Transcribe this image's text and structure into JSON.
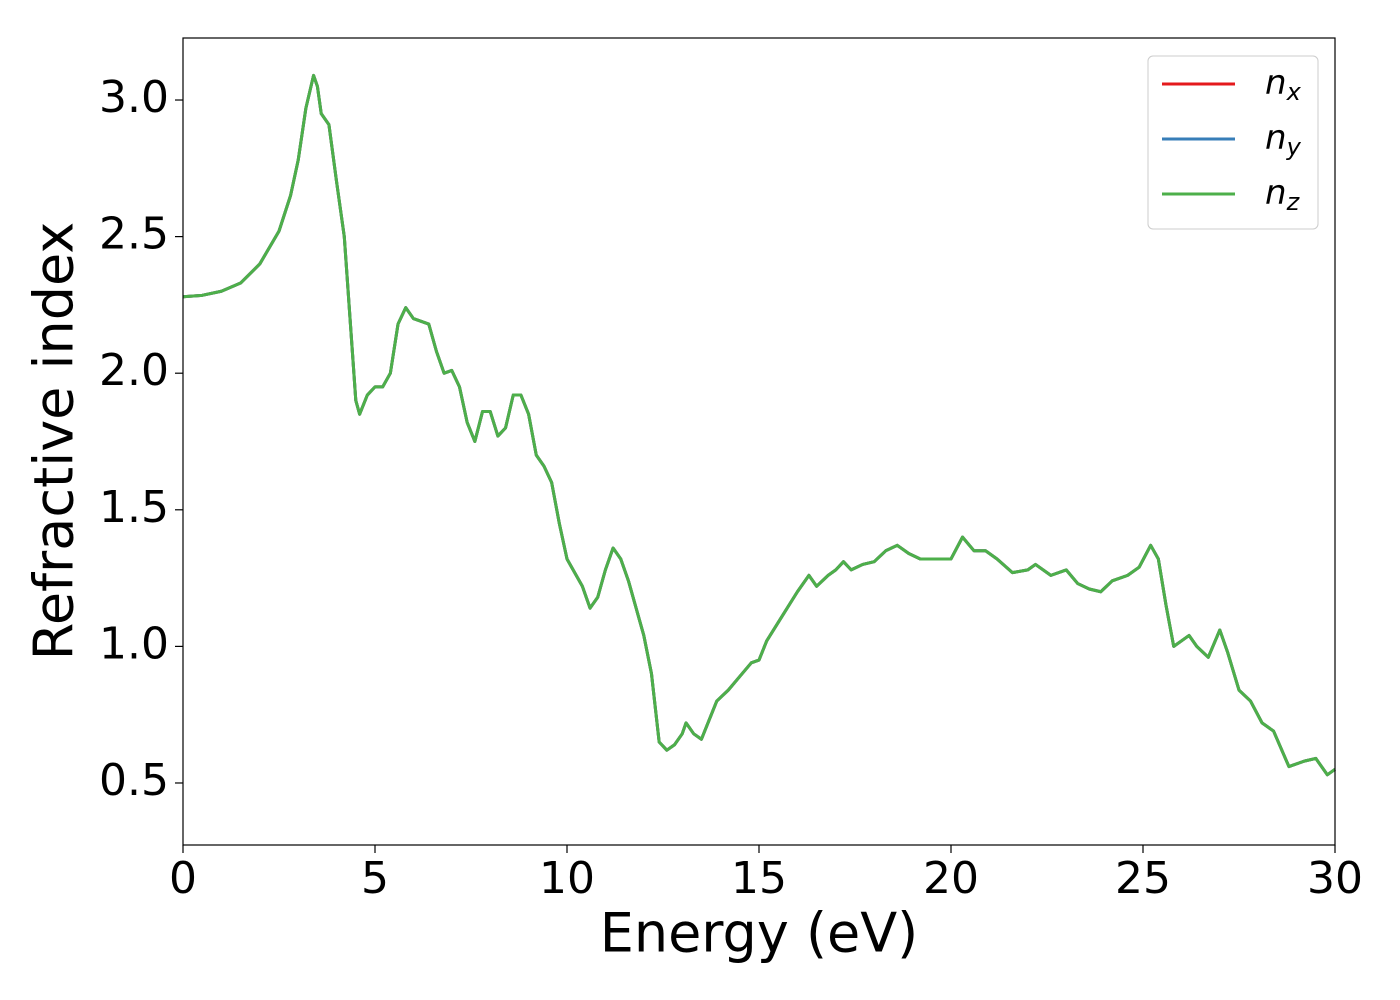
{
  "chart_data": {
    "type": "line",
    "xlabel": "Energy (eV)",
    "ylabel": "Refractive index",
    "xlim": [
      0,
      30
    ],
    "ylim": [
      0.273,
      3.227
    ],
    "xticks": [
      0,
      5,
      10,
      15,
      20,
      25,
      30
    ],
    "yticks": [
      0.5,
      {
        "value": 1,
        "label": "1.0"
      },
      1.5,
      {
        "value": 2,
        "label": "2.0"
      },
      2.5,
      {
        "value": 3,
        "label": "3.0"
      }
    ],
    "legend": "upper right",
    "x": [
      0,
      0.5,
      1,
      1.5,
      2,
      2.5,
      2.8,
      3,
      3.2,
      3.4,
      3.5,
      3.6,
      3.7,
      3.8,
      4,
      4.2,
      4.4,
      4.5,
      4.6,
      4.8,
      5,
      5.2,
      5.4,
      5.6,
      5.8,
      6,
      6.2,
      6.4,
      6.6,
      6.8,
      7,
      7.2,
      7.4,
      7.6,
      7.8,
      8,
      8.2,
      8.4,
      8.6,
      8.8,
      9,
      9.2,
      9.4,
      9.6,
      9.8,
      10,
      10.2,
      10.4,
      10.6,
      10.8,
      11,
      11.2,
      11.4,
      11.6,
      11.8,
      12,
      12.2,
      12.4,
      12.6,
      12.8,
      13,
      13.1,
      13.3,
      13.5,
      13.7,
      13.9,
      14.2,
      14.5,
      14.8,
      15,
      15.2,
      15.6,
      16,
      16.3,
      16.5,
      16.8,
      17,
      17.2,
      17.4,
      17.7,
      18,
      18.3,
      18.6,
      18.9,
      19.2,
      19.6,
      20,
      20.3,
      20.6,
      20.9,
      21.2,
      21.6,
      22,
      22.2,
      22.6,
      23,
      23.3,
      23.6,
      23.9,
      24.2,
      24.6,
      24.9,
      25.2,
      25.4,
      25.6,
      25.8,
      26,
      26.2,
      26.4,
      26.7,
      27,
      27.2,
      27.5,
      27.8,
      28.1,
      28.4,
      28.8,
      29.2,
      29.5,
      29.8,
      30
    ],
    "series": [
      {
        "name": "nx",
        "color": "#e41a1c",
        "values": [
          2.28,
          2.285,
          2.3,
          2.33,
          2.4,
          2.52,
          2.65,
          2.78,
          2.97,
          3.09,
          3.05,
          2.95,
          2.93,
          2.91,
          2.7,
          2.5,
          2.1,
          1.9,
          1.85,
          1.92,
          1.95,
          1.95,
          2,
          2.18,
          2.24,
          2.2,
          2.19,
          2.18,
          2.08,
          2,
          2.01,
          1.95,
          1.82,
          1.75,
          1.86,
          1.86,
          1.77,
          1.8,
          1.92,
          1.92,
          1.85,
          1.7,
          1.66,
          1.6,
          1.45,
          1.32,
          1.27,
          1.22,
          1.14,
          1.18,
          1.28,
          1.36,
          1.32,
          1.24,
          1.14,
          1.04,
          0.9,
          0.65,
          0.62,
          0.64,
          0.68,
          0.72,
          0.68,
          0.66,
          0.73,
          0.8,
          0.84,
          0.89,
          0.94,
          0.95,
          1.02,
          1.11,
          1.2,
          1.26,
          1.22,
          1.26,
          1.28,
          1.31,
          1.28,
          1.3,
          1.31,
          1.35,
          1.37,
          1.34,
          1.32,
          1.32,
          1.32,
          1.4,
          1.35,
          1.35,
          1.32,
          1.27,
          1.28,
          1.3,
          1.26,
          1.28,
          1.23,
          1.21,
          1.2,
          1.24,
          1.26,
          1.29,
          1.37,
          1.32,
          1.15,
          1,
          1.02,
          1.04,
          1,
          0.96,
          1.06,
          0.98,
          0.84,
          0.8,
          0.72,
          0.69,
          0.56,
          0.58,
          0.59,
          0.53,
          0.55
        ]
      },
      {
        "name": "ny",
        "color": "#377eb8",
        "values": [
          2.28,
          2.285,
          2.3,
          2.33,
          2.4,
          2.52,
          2.65,
          2.78,
          2.97,
          3.09,
          3.05,
          2.95,
          2.93,
          2.91,
          2.7,
          2.5,
          2.1,
          1.9,
          1.85,
          1.92,
          1.95,
          1.95,
          2,
          2.18,
          2.24,
          2.2,
          2.19,
          2.18,
          2.08,
          2,
          2.01,
          1.95,
          1.82,
          1.75,
          1.86,
          1.86,
          1.77,
          1.8,
          1.92,
          1.92,
          1.85,
          1.7,
          1.66,
          1.6,
          1.45,
          1.32,
          1.27,
          1.22,
          1.14,
          1.18,
          1.28,
          1.36,
          1.32,
          1.24,
          1.14,
          1.04,
          0.9,
          0.65,
          0.62,
          0.64,
          0.68,
          0.72,
          0.68,
          0.66,
          0.73,
          0.8,
          0.84,
          0.89,
          0.94,
          0.95,
          1.02,
          1.11,
          1.2,
          1.26,
          1.22,
          1.26,
          1.28,
          1.31,
          1.28,
          1.3,
          1.31,
          1.35,
          1.37,
          1.34,
          1.32,
          1.32,
          1.32,
          1.4,
          1.35,
          1.35,
          1.32,
          1.27,
          1.28,
          1.3,
          1.26,
          1.28,
          1.23,
          1.21,
          1.2,
          1.24,
          1.26,
          1.29,
          1.37,
          1.32,
          1.15,
          1,
          1.02,
          1.04,
          1,
          0.96,
          1.06,
          0.98,
          0.84,
          0.8,
          0.72,
          0.69,
          0.56,
          0.58,
          0.59,
          0.53,
          0.55
        ]
      },
      {
        "name": "nz",
        "color": "#4daf4a",
        "values": [
          2.28,
          2.285,
          2.3,
          2.33,
          2.4,
          2.52,
          2.65,
          2.78,
          2.97,
          3.09,
          3.05,
          2.95,
          2.93,
          2.91,
          2.7,
          2.5,
          2.1,
          1.9,
          1.85,
          1.92,
          1.95,
          1.95,
          2,
          2.18,
          2.24,
          2.2,
          2.19,
          2.18,
          2.08,
          2,
          2.01,
          1.95,
          1.82,
          1.75,
          1.86,
          1.86,
          1.77,
          1.8,
          1.92,
          1.92,
          1.85,
          1.7,
          1.66,
          1.6,
          1.45,
          1.32,
          1.27,
          1.22,
          1.14,
          1.18,
          1.28,
          1.36,
          1.32,
          1.24,
          1.14,
          1.04,
          0.9,
          0.65,
          0.62,
          0.64,
          0.68,
          0.72,
          0.68,
          0.66,
          0.73,
          0.8,
          0.84,
          0.89,
          0.94,
          0.95,
          1.02,
          1.11,
          1.2,
          1.26,
          1.22,
          1.26,
          1.28,
          1.31,
          1.28,
          1.3,
          1.31,
          1.35,
          1.37,
          1.34,
          1.32,
          1.32,
          1.32,
          1.4,
          1.35,
          1.35,
          1.32,
          1.27,
          1.28,
          1.3,
          1.26,
          1.28,
          1.23,
          1.21,
          1.2,
          1.24,
          1.26,
          1.29,
          1.37,
          1.32,
          1.15,
          1,
          1.02,
          1.04,
          1,
          0.96,
          1.06,
          0.98,
          0.84,
          0.8,
          0.72,
          0.69,
          0.56,
          0.58,
          0.59,
          0.53,
          0.55
        ]
      }
    ]
  }
}
